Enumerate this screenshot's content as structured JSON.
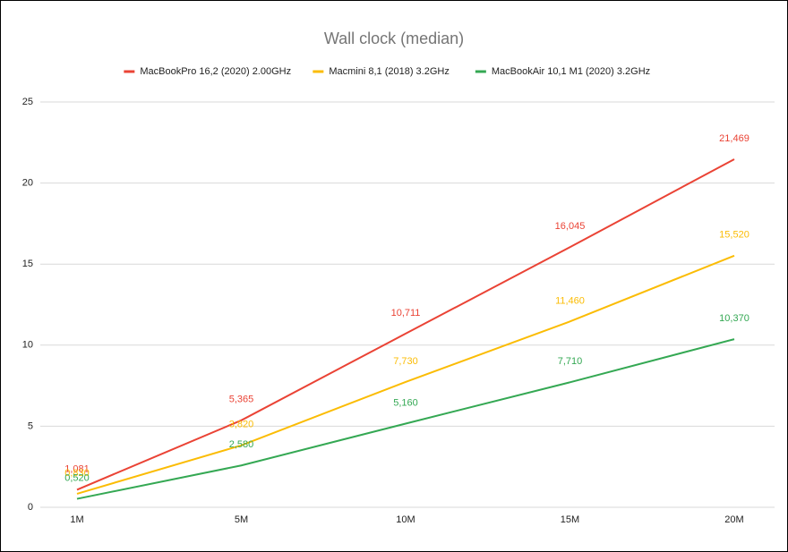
{
  "chart_data": {
    "type": "line",
    "title": "Wall clock (median)",
    "categories": [
      "1M",
      "5M",
      "10M",
      "15M",
      "20M"
    ],
    "series": [
      {
        "name": "MacBookPro 16,2 (2020) 2.00GHz",
        "color": "#ea4335",
        "values": [
          1.081,
          5.365,
          10.711,
          16.045,
          21.469
        ],
        "value_labels": [
          "1,081",
          "5,365",
          "10,711",
          "16,045",
          "21,469"
        ]
      },
      {
        "name": "Macmini 8,1 (2018) 3.2GHz",
        "color": "#fbbc04",
        "values": [
          0.83,
          3.82,
          7.73,
          11.46,
          15.52
        ],
        "value_labels": [
          "0,830",
          "3,820",
          "7,730",
          "11,460",
          "15,520"
        ]
      },
      {
        "name": "MacBookAir 10,1 M1 (2020) 3.2GHz",
        "color": "#34a853",
        "values": [
          0.52,
          2.58,
          5.16,
          7.71,
          10.37
        ],
        "value_labels": [
          "0,520",
          "2,580",
          "5,160",
          "7,710",
          "10,370"
        ]
      }
    ],
    "ylim": [
      0,
      25
    ],
    "yticks": [
      0,
      5,
      10,
      15,
      20,
      25
    ],
    "grid": true,
    "legend": "top"
  }
}
